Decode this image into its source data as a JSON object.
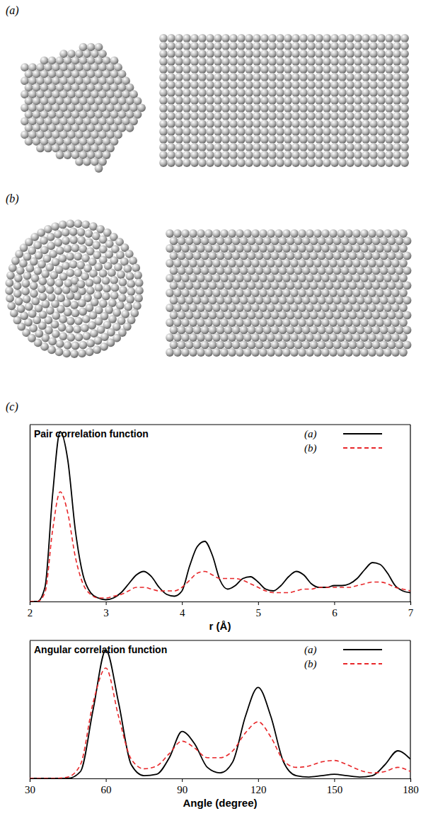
{
  "panel_labels": [
    "(a)",
    "(b)",
    "(c)"
  ],
  "chart_data": [
    {
      "type": "line",
      "title": "Pair correlation function",
      "x_label": "r (Å)",
      "x": [
        2.0,
        2.1,
        2.2,
        2.3,
        2.4,
        2.5,
        2.6,
        2.7,
        2.8,
        2.9,
        3.0,
        3.1,
        3.2,
        3.3,
        3.4,
        3.5,
        3.6,
        3.7,
        3.8,
        3.9,
        4.0,
        4.1,
        4.2,
        4.3,
        4.4,
        4.5,
        4.6,
        4.7,
        4.8,
        4.9,
        5.0,
        5.1,
        5.2,
        5.3,
        5.4,
        5.5,
        5.6,
        5.7,
        5.8,
        5.9,
        6.0,
        6.1,
        6.2,
        6.3,
        6.4,
        6.5,
        6.6,
        6.7,
        6.8,
        6.9,
        7.0
      ],
      "xlim": [
        2,
        7
      ],
      "xticks": [
        2,
        3,
        4,
        5,
        6,
        7
      ],
      "ylim": [
        0,
        1
      ],
      "tick_labels": "x",
      "legend": "top-right",
      "series": [
        {
          "name": "(a)",
          "color": "#000000",
          "line_style": "solid",
          "values": [
            0,
            0,
            0.08,
            0.6,
            0.96,
            0.8,
            0.4,
            0.15,
            0.05,
            0.02,
            0.01,
            0.02,
            0.05,
            0.1,
            0.15,
            0.17,
            0.14,
            0.08,
            0.04,
            0.03,
            0.06,
            0.2,
            0.31,
            0.34,
            0.26,
            0.12,
            0.07,
            0.09,
            0.13,
            0.14,
            0.11,
            0.07,
            0.06,
            0.09,
            0.14,
            0.17,
            0.15,
            0.1,
            0.08,
            0.08,
            0.09,
            0.09,
            0.1,
            0.13,
            0.18,
            0.22,
            0.21,
            0.16,
            0.09,
            0.06,
            0.05
          ]
        },
        {
          "name": "(b)",
          "color": "#e8272a",
          "line_style": "dashed",
          "values": [
            0,
            0,
            0.05,
            0.4,
            0.62,
            0.5,
            0.25,
            0.1,
            0.04,
            0.02,
            0.02,
            0.03,
            0.04,
            0.06,
            0.08,
            0.08,
            0.07,
            0.06,
            0.06,
            0.06,
            0.08,
            0.12,
            0.16,
            0.17,
            0.15,
            0.13,
            0.13,
            0.13,
            0.12,
            0.1,
            0.08,
            0.06,
            0.05,
            0.05,
            0.05,
            0.06,
            0.07,
            0.07,
            0.08,
            0.08,
            0.08,
            0.08,
            0.08,
            0.09,
            0.1,
            0.11,
            0.11,
            0.1,
            0.08,
            0.07,
            0.06
          ]
        }
      ]
    },
    {
      "type": "line",
      "title": "Angular correlation function",
      "x_label": "Angle (degree)",
      "x": [
        30,
        35,
        40,
        45,
        50,
        55,
        60,
        65,
        70,
        75,
        80,
        85,
        90,
        95,
        100,
        105,
        110,
        115,
        120,
        125,
        130,
        135,
        140,
        145,
        150,
        155,
        160,
        165,
        170,
        175,
        180
      ],
      "xlim": [
        30,
        180
      ],
      "xticks": [
        30,
        60,
        90,
        120,
        150,
        180
      ],
      "ylim": [
        0,
        1
      ],
      "tick_labels": "x",
      "legend": "top-right",
      "series": [
        {
          "name": "(a)",
          "color": "#000000",
          "line_style": "solid",
          "values": [
            0,
            0,
            0,
            0,
            0.05,
            0.5,
            0.93,
            0.55,
            0.1,
            0.02,
            0.03,
            0.15,
            0.34,
            0.25,
            0.08,
            0.04,
            0.12,
            0.45,
            0.66,
            0.45,
            0.12,
            0.02,
            0.01,
            0.02,
            0.03,
            0.02,
            0.01,
            0.02,
            0.1,
            0.2,
            0.14
          ]
        },
        {
          "name": "(b)",
          "color": "#e8272a",
          "line_style": "dashed",
          "values": [
            0,
            0,
            0,
            0.01,
            0.1,
            0.55,
            0.8,
            0.45,
            0.14,
            0.07,
            0.09,
            0.18,
            0.27,
            0.22,
            0.15,
            0.15,
            0.2,
            0.33,
            0.41,
            0.3,
            0.13,
            0.08,
            0.09,
            0.12,
            0.13,
            0.1,
            0.06,
            0.04,
            0.05,
            0.08,
            0.05
          ]
        }
      ]
    }
  ]
}
